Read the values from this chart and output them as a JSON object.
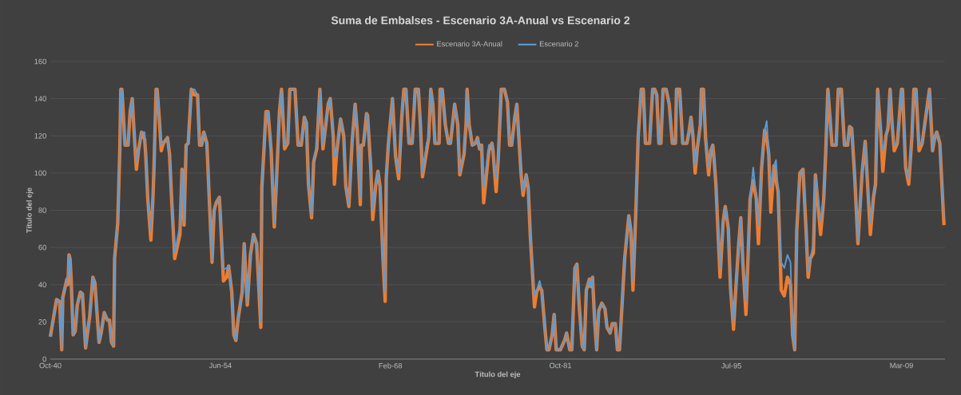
{
  "chart_data": {
    "type": "line",
    "title": "Suma de Embalses - Escenario 3A-Anual vs Escenario 2",
    "xlabel": "Título del eje",
    "ylabel": "Título del eje",
    "x": [
      "1940-10",
      "1941-04",
      "1941-07",
      "1941-09",
      "1941-10",
      "1942-02",
      "1942-03",
      "1942-04",
      "1942-05",
      "1942-06",
      "1942-08",
      "1942-10",
      "1942-12",
      "1943-03",
      "1943-05",
      "1943-08",
      "1943-12",
      "1944-03",
      "1944-05",
      "1944-09",
      "1944-11",
      "1945-02",
      "1945-05",
      "1945-07",
      "1945-09",
      "1945-11",
      "1945-12",
      "1946-03",
      "1946-05",
      "1946-06",
      "1946-07",
      "1946-08",
      "1946-10",
      "1947-01",
      "1947-03",
      "1947-05",
      "1947-07",
      "1947-09",
      "1947-11",
      "1948-02",
      "1948-05",
      "1948-06",
      "1948-08",
      "1948-11",
      "1949-01",
      "1949-02",
      "1949-04",
      "1949-05",
      "1949-07",
      "1949-09",
      "1949-11",
      "1950-03",
      "1950-05",
      "1950-07",
      "1950-10",
      "1951-03",
      "1951-05",
      "1951-07",
      "1951-09",
      "1951-11",
      "1952-02",
      "1952-05",
      "1952-08",
      "1952-10",
      "1952-12",
      "1953-02",
      "1953-05",
      "1953-07",
      "1953-10",
      "1953-12",
      "1954-02",
      "1954-05",
      "1954-06",
      "1954-09",
      "1954-12",
      "1955-02",
      "1955-05",
      "1955-07",
      "1955-09",
      "1955-11",
      "1956-03",
      "1956-05",
      "1956-08",
      "1956-11",
      "1957-02",
      "1957-05",
      "1957-09",
      "1957-10",
      "1957-12",
      "1958-02",
      "1958-04",
      "1958-07",
      "1958-10",
      "1958-12",
      "1959-03",
      "1959-05",
      "1959-08",
      "1959-11",
      "1960-01",
      "1960-06",
      "1960-09",
      "1960-12",
      "1961-03",
      "1961-05",
      "1961-07",
      "1961-10",
      "1961-12",
      "1962-03",
      "1962-06",
      "1962-09",
      "1963-02",
      "1963-04",
      "1963-07",
      "1963-08",
      "1963-10",
      "1964-02",
      "1964-05",
      "1964-07",
      "1964-10",
      "1965-01",
      "1965-04",
      "1965-06",
      "1965-09",
      "1965-10",
      "1965-12",
      "1966-03",
      "1966-04",
      "1966-07",
      "1966-09",
      "1966-12",
      "1967-02",
      "1967-04",
      "1967-07",
      "1967-09",
      "1967-10",
      "1967-12",
      "1968-04",
      "1968-07",
      "1968-10",
      "1969-01",
      "1969-03",
      "1969-05",
      "1969-08",
      "1969-11",
      "1970-02",
      "1970-05",
      "1970-07",
      "1970-09",
      "1971-01",
      "1971-03",
      "1971-05",
      "1971-07",
      "1971-09",
      "1972-01",
      "1972-02",
      "1972-04",
      "1972-07",
      "1972-10",
      "1972-12",
      "1973-04",
      "1973-07",
      "1973-09",
      "1974-01",
      "1974-03",
      "1974-04",
      "1974-06",
      "1974-09",
      "1974-12",
      "1975-02",
      "1975-04",
      "1975-06",
      "1975-08",
      "1976-01",
      "1976-04",
      "1976-05",
      "1976-08",
      "1976-10",
      "1977-01",
      "1977-04",
      "1977-07",
      "1977-09",
      "1977-11",
      "1978-02",
      "1978-04",
      "1978-08",
      "1978-10",
      "1979-01",
      "1979-03",
      "1979-05",
      "1979-09",
      "1979-11",
      "1980-02",
      "1980-04",
      "1980-07",
      "1980-09",
      "1980-11",
      "1981-02",
      "1981-04",
      "1981-06",
      "1981-10",
      "1982-02",
      "1982-04",
      "1982-07",
      "1982-09",
      "1982-12",
      "1983-02",
      "1983-04",
      "1983-07",
      "1983-09",
      "1983-11",
      "1984-02",
      "1984-03",
      "1984-05",
      "1984-07",
      "1984-09",
      "1984-11",
      "1985-02",
      "1985-05",
      "1985-07",
      "1985-10",
      "1985-12",
      "1986-03",
      "1986-05",
      "1986-07",
      "1986-12",
      "1987-04",
      "1987-06",
      "1987-08",
      "1987-11",
      "1988-01",
      "1988-04",
      "1988-06",
      "1988-08",
      "1988-12",
      "1989-03",
      "1989-05",
      "1989-07",
      "1989-09",
      "1989-11",
      "1990-01",
      "1990-04",
      "1990-07",
      "1990-10",
      "1991-01",
      "1991-02",
      "1991-05",
      "1991-08",
      "1991-12",
      "1992-02",
      "1992-04",
      "1992-06",
      "1992-08",
      "1992-10",
      "1993-01",
      "1993-02",
      "1993-04",
      "1993-06",
      "1993-09",
      "1993-11",
      "1994-01",
      "1994-02",
      "1994-04",
      "1994-08",
      "1994-11",
      "1995-01",
      "1995-04",
      "1995-06",
      "1995-09",
      "1995-11",
      "1996-02",
      "1996-04",
      "1996-06",
      "1996-09",
      "1997-01",
      "1997-04",
      "1997-07",
      "1997-09",
      "1997-12",
      "1998-03",
      "1998-05",
      "1998-07",
      "1998-09",
      "1998-12",
      "1999-02",
      "1999-04",
      "1999-07",
      "1999-10",
      "2000-01",
      "2000-04",
      "2000-06",
      "2000-08",
      "2000-10",
      "2001-01",
      "2001-04",
      "2001-07",
      "2001-09",
      "2001-11",
      "2002-02",
      "2002-04",
      "2002-09",
      "2002-12",
      "2003-02",
      "2003-04",
      "2003-08",
      "2003-12",
      "2004-02",
      "2004-05",
      "2004-08",
      "2004-11",
      "2005-01",
      "2005-03",
      "2005-06",
      "2005-09",
      "2006-01",
      "2006-04",
      "2006-06",
      "2006-09",
      "2006-12",
      "2007-02",
      "2007-04",
      "2007-07",
      "2007-09",
      "2007-12",
      "2008-02",
      "2008-04",
      "2008-06",
      "2008-08",
      "2008-11",
      "2009-03",
      "2009-04",
      "2009-07",
      "2009-10",
      "2010-01",
      "2010-03",
      "2010-05",
      "2010-08",
      "2010-11",
      "2011-06",
      "2011-09",
      "2011-11",
      "2012-01",
      "2012-04",
      "2012-08"
    ],
    "series": [
      {
        "name": "Escenario 3A-Anual",
        "color": "#ed7d31",
        "values": [
          12,
          32,
          31,
          5,
          33,
          43,
          40,
          56,
          54,
          44,
          13,
          15,
          29,
          36,
          35,
          6,
          23,
          44,
          41,
          9,
          14,
          25,
          21,
          21,
          9,
          7,
          54,
          73,
          112,
          145,
          145,
          136,
          115,
          115,
          133,
          140,
          120,
          102,
          112,
          122,
          118,
          110,
          86,
          64,
          87,
          103,
          145,
          145,
          130,
          112,
          116,
          119,
          110,
          86,
          54,
          67,
          102,
          72,
          115,
          116,
          145,
          142,
          142,
          115,
          115,
          122,
          116,
          90,
          52,
          80,
          84,
          87,
          77,
          42,
          44,
          50,
          36,
          13,
          10,
          21,
          36,
          62,
          29,
          56,
          67,
          62,
          17,
          92,
          112,
          133,
          133,
          112,
          71,
          94,
          133,
          145,
          113,
          116,
          145,
          145,
          115,
          115,
          130,
          127,
          94,
          76,
          106,
          113,
          145,
          113,
          137,
          140,
          119,
          94,
          110,
          129,
          120,
          93,
          82,
          116,
          137,
          123,
          83,
          115,
          115,
          132,
          131,
          104,
          75,
          94,
          101,
          93,
          52,
          31,
          97,
          115,
          140,
          109,
          97,
          130,
          145,
          145,
          116,
          116,
          145,
          145,
          126,
          98,
          112,
          119,
          145,
          137,
          116,
          116,
          145,
          145,
          126,
          116,
          116,
          137,
          126,
          99,
          110,
          126,
          145,
          126,
          115,
          116,
          119,
          113,
          115,
          84,
          112,
          116,
          112,
          90,
          107,
          145,
          145,
          138,
          115,
          115,
          130,
          137,
          100,
          88,
          99,
          92,
          66,
          28,
          36,
          39,
          37,
          17,
          5,
          5,
          13,
          24,
          5,
          5,
          10,
          14,
          5,
          5,
          49,
          51,
          30,
          7,
          5,
          37,
          43,
          39,
          44,
          21,
          5,
          26,
          30,
          27,
          17,
          14,
          19,
          19,
          5,
          5,
          54,
          77,
          69,
          37,
          83,
          119,
          145,
          145,
          116,
          116,
          145,
          145,
          142,
          116,
          116,
          145,
          145,
          137,
          116,
          116,
          145,
          145,
          116,
          116,
          122,
          130,
          119,
          100,
          113,
          126,
          145,
          145,
          119,
          99,
          112,
          115,
          109,
          94,
          44,
          74,
          82,
          70,
          39,
          16,
          36,
          62,
          76,
          52,
          24,
          86,
          96,
          86,
          62,
          102,
          123,
          119,
          110,
          79,
          104,
          96,
          90,
          37,
          34,
          44,
          40,
          13,
          5,
          69,
          100,
          102,
          69,
          44,
          54,
          57,
          99,
          67,
          86,
          112,
          145,
          115,
          115,
          145,
          145,
          115,
          115,
          125,
          124,
          97,
          62,
          100,
          117,
          97,
          67,
          87,
          94,
          145,
          122,
          101,
          120,
          124,
          145,
          126,
          112,
          116,
          145,
          145,
          103,
          94,
          119,
          145,
          145,
          112,
          116,
          145,
          112,
          119,
          122,
          116,
          72
        ]
      },
      {
        "name": "Escenario 2",
        "color": "#5b9bd5",
        "values": [
          12,
          32,
          31,
          5,
          33,
          43,
          45,
          56,
          54,
          44,
          13,
          15,
          29,
          36,
          35,
          6,
          23,
          44,
          41,
          9,
          14,
          25,
          21,
          21,
          9,
          7,
          54,
          73,
          112,
          145,
          145,
          136,
          115,
          115,
          133,
          140,
          120,
          106,
          112,
          122,
          122,
          110,
          86,
          69,
          87,
          103,
          145,
          145,
          130,
          115,
          116,
          119,
          110,
          86,
          57,
          72,
          102,
          74,
          115,
          116,
          145,
          145,
          142,
          115,
          115,
          122,
          116,
          90,
          53,
          80,
          84,
          87,
          77,
          48,
          49,
          50,
          36,
          13,
          10,
          21,
          36,
          62,
          30,
          56,
          67,
          62,
          20,
          92,
          112,
          133,
          133,
          112,
          73,
          94,
          133,
          145,
          115,
          116,
          145,
          145,
          115,
          115,
          130,
          127,
          94,
          77,
          106,
          116,
          145,
          115,
          137,
          140,
          119,
          109,
          110,
          129,
          120,
          93,
          83,
          116,
          137,
          123,
          87,
          115,
          115,
          132,
          131,
          104,
          80,
          94,
          101,
          93,
          52,
          36,
          97,
          115,
          140,
          109,
          100,
          130,
          145,
          145,
          116,
          116,
          145,
          145,
          126,
          100,
          116,
          119,
          145,
          137,
          116,
          116,
          145,
          145,
          126,
          116,
          116,
          137,
          126,
          100,
          112,
          126,
          145,
          126,
          115,
          116,
          119,
          113,
          115,
          92,
          115,
          116,
          112,
          97,
          107,
          145,
          145,
          138,
          115,
          115,
          130,
          137,
          100,
          90,
          99,
          92,
          66,
          34,
          37,
          42,
          37,
          17,
          5,
          5,
          13,
          24,
          5,
          5,
          10,
          14,
          5,
          5,
          49,
          51,
          30,
          7,
          5,
          37,
          43,
          39,
          44,
          21,
          5,
          26,
          30,
          27,
          17,
          14,
          19,
          19,
          5,
          5,
          54,
          77,
          69,
          42,
          83,
          119,
          145,
          145,
          116,
          116,
          145,
          145,
          142,
          116,
          116,
          145,
          145,
          137,
          116,
          116,
          145,
          145,
          116,
          116,
          122,
          130,
          119,
          104,
          113,
          126,
          145,
          145,
          119,
          103,
          112,
          115,
          109,
          94,
          49,
          74,
          82,
          70,
          39,
          20,
          36,
          62,
          76,
          52,
          31,
          86,
          103,
          86,
          72,
          102,
          123,
          128,
          110,
          92,
          104,
          107,
          90,
          52,
          49,
          56,
          52,
          13,
          5,
          69,
          100,
          102,
          69,
          47,
          54,
          62,
          99,
          74,
          86,
          112,
          145,
          115,
          115,
          145,
          145,
          115,
          115,
          125,
          124,
          97,
          63,
          100,
          117,
          97,
          73,
          87,
          94,
          145,
          122,
          112,
          120,
          127,
          145,
          126,
          115,
          116,
          145,
          145,
          103,
          97,
          119,
          145,
          145,
          115,
          116,
          145,
          112,
          119,
          122,
          116,
          76
        ]
      }
    ],
    "xlim": [
      "1940-10",
      "2012-09"
    ],
    "xticks": [
      {
        "value": "1940-10",
        "label": "Oct-40"
      },
      {
        "value": "1954-06",
        "label": "Jun-54"
      },
      {
        "value": "1968-02",
        "label": "Feb-68"
      },
      {
        "value": "1981-10",
        "label": "Oct-81"
      },
      {
        "value": "1995-07",
        "label": "Jul-95"
      },
      {
        "value": "2009-03",
        "label": "Mar-09"
      }
    ],
    "ylim": [
      0,
      160
    ],
    "yticks": [
      0,
      20,
      40,
      60,
      80,
      100,
      120,
      140,
      160
    ],
    "grid": "y",
    "legend": "top",
    "marker": "none",
    "line_style": "solid"
  }
}
